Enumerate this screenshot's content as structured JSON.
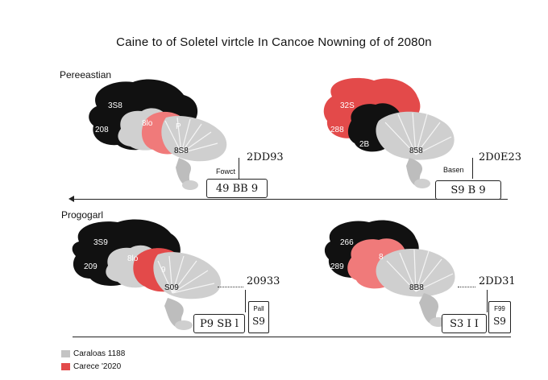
{
  "title": "Caine to of Soletel virtcle In Cancoe Nowning of of 2080n",
  "rows": [
    {
      "label": "Pereeastian"
    },
    {
      "label": "Progogarl"
    }
  ],
  "panels": [
    {
      "id": "top-left",
      "dark_labels": [
        "3S8",
        "208"
      ],
      "grey_label": "8lo",
      "red_label": "P",
      "mid_label": "8S8",
      "year": "2DD93",
      "small_label": "Fowct",
      "box_text": "49 BB 9"
    },
    {
      "id": "top-right",
      "dark_labels": [
        "32S",
        "288",
        "2B"
      ],
      "mid_label": "858",
      "year": "2D0E23",
      "small_label": "Basen",
      "box_text": "S9 B 9"
    },
    {
      "id": "bottom-left",
      "dark_labels": [
        "3S9",
        "209"
      ],
      "grey_label": "8lo",
      "red_label": "9",
      "mid_label": "S09",
      "year": "20933",
      "box_text": "P9 SB l",
      "tall_top": "Pall",
      "tall_bottom": "S9"
    },
    {
      "id": "bottom-right",
      "dark_labels": [
        "266",
        "289"
      ],
      "red_label": "8",
      "mid_label": "8B8",
      "year": "2DD31",
      "box_text": "S3 I I",
      "tall_top": "F99",
      "tall_bottom": "S9"
    }
  ],
  "legend": [
    {
      "label": "Caraloas 1188",
      "color": "#c4c4c4"
    },
    {
      "label": "Carece '2020",
      "color": "#e34a4a"
    }
  ],
  "colors": {
    "dark": "#111111",
    "red": "#e34a4a",
    "light_red": "#f08a8a",
    "grey": "#c9c9c9",
    "light_grey": "#dcdcdc"
  }
}
